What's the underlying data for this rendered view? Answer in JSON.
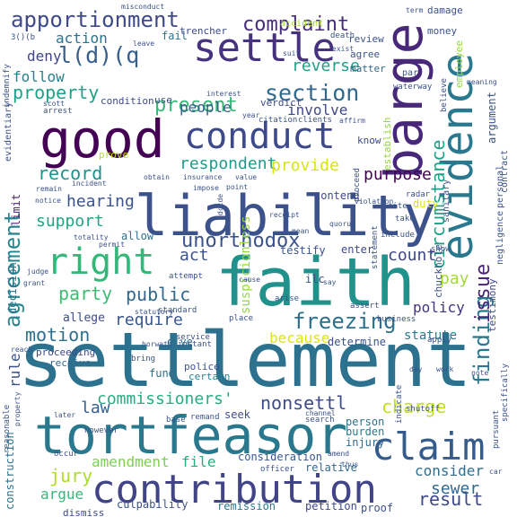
{
  "cloud": {
    "words": [
      {
        "text": "settlement",
        "color": "#2c728e"
      },
      {
        "text": "faith",
        "color": "#21918c"
      },
      {
        "text": "liability",
        "color": "#3b528b"
      },
      {
        "text": "tortfeasor",
        "color": "#2a788e"
      },
      {
        "text": "good",
        "color": "#440154"
      },
      {
        "text": "contribution",
        "color": "#414487"
      },
      {
        "text": "settle",
        "color": "#46327e"
      },
      {
        "text": "barge",
        "color": "#482878"
      },
      {
        "text": "evidence",
        "color": "#2a788e"
      },
      {
        "text": "conduct",
        "color": "#3e4989"
      },
      {
        "text": "claim",
        "color": "#365c8d"
      },
      {
        "text": "right",
        "color": "#35b779"
      },
      {
        "text": "apportionment",
        "color": "#3e4a89"
      },
      {
        "text": "l(d)(q",
        "color": "#355f8d"
      },
      {
        "text": "section",
        "color": "#31688e"
      },
      {
        "text": "unorthodox",
        "color": "#3b528b"
      },
      {
        "text": "freezing",
        "color": "#2d708e"
      },
      {
        "text": "agreement",
        "color": "#25848e"
      },
      {
        "text": "finding",
        "color": "#2a788e"
      },
      {
        "text": "circumstance",
        "color": "#1fa187"
      },
      {
        "text": "complaint",
        "color": "#472d7b"
      },
      {
        "text": "property",
        "color": "#1fa188"
      },
      {
        "text": "present",
        "color": "#37b878"
      },
      {
        "text": "respondent",
        "color": "#1e9b8a"
      },
      {
        "text": "nonsettl",
        "color": "#3e4a89"
      },
      {
        "text": "public",
        "color": "#31688e"
      },
      {
        "text": "charge",
        "color": "#c0df25"
      },
      {
        "text": "party",
        "color": "#3fbc73"
      },
      {
        "text": "motion",
        "color": "#2d708e"
      },
      {
        "text": "record",
        "color": "#21918c"
      },
      {
        "text": "commissioners'",
        "color": "#27ad81"
      },
      {
        "text": "issue",
        "color": "#482475"
      },
      {
        "text": "require",
        "color": "#39568c"
      },
      {
        "text": "jury",
        "color": "#addc30"
      },
      {
        "text": "provide",
        "color": "#d8e219"
      },
      {
        "text": "support",
        "color": "#20a486"
      },
      {
        "text": "hearing",
        "color": "#3b528b"
      },
      {
        "text": "act",
        "color": "#3b528b"
      },
      {
        "text": "law",
        "color": "#355f8d"
      },
      {
        "text": "result",
        "color": "#3e4989"
      },
      {
        "text": "sewer",
        "color": "#31688e"
      },
      {
        "text": "count",
        "color": "#3f4788"
      },
      {
        "text": "policy",
        "color": "#46337f"
      },
      {
        "text": "pay",
        "color": "#a2da37"
      },
      {
        "text": "because",
        "color": "#dde318"
      },
      {
        "text": "involve",
        "color": "#3f4889"
      },
      {
        "text": "people",
        "color": "#355e8d"
      },
      {
        "text": "purpose",
        "color": "#440154"
      },
      {
        "text": "reverse",
        "color": "#1fa088"
      },
      {
        "text": "action",
        "color": "#2c728e"
      },
      {
        "text": "follow",
        "color": "#26828e"
      },
      {
        "text": "deny",
        "color": "#404688"
      },
      {
        "text": "amendment",
        "color": "#7ad151"
      },
      {
        "text": "argue",
        "color": "#35b779"
      },
      {
        "text": "consider",
        "color": "#2e6f8e"
      },
      {
        "text": "file",
        "color": "#28ae80"
      },
      {
        "text": "rule",
        "color": "#3b528b"
      },
      {
        "text": "allege",
        "color": "#3e4a89"
      },
      {
        "text": "statute",
        "color": "#2a788e"
      },
      {
        "text": "determine",
        "color": "#3b528b"
      },
      {
        "text": "construction",
        "color": "#2c728e"
      },
      {
        "text": "culpability",
        "color": "#3b528b"
      },
      {
        "text": "remission",
        "color": "#2a788e"
      },
      {
        "text": "petition",
        "color": "#3e4a89"
      },
      {
        "text": "proof",
        "color": "#3b528b"
      },
      {
        "text": "dismiss",
        "color": "#3e4989"
      },
      {
        "text": "consideration",
        "color": "#39568c"
      },
      {
        "text": "relative",
        "color": "#31688e"
      },
      {
        "text": "seek",
        "color": "#3e4989"
      },
      {
        "text": "give",
        "color": "#2e6e8e"
      },
      {
        "text": "suspicionless",
        "color": "#95d840"
      },
      {
        "text": "fund",
        "color": "#2c728e"
      },
      {
        "text": "certain",
        "color": "#26828e"
      },
      {
        "text": "police",
        "color": "#3b528b"
      },
      {
        "text": "injury",
        "color": "#31688e"
      },
      {
        "text": "burden",
        "color": "#2a788e"
      },
      {
        "text": "person",
        "color": "#2c728e"
      },
      {
        "text": "duty",
        "color": "#dde318"
      },
      {
        "text": "ilc",
        "color": "#3b528b"
      },
      {
        "text": "testify",
        "color": "#3b528b"
      },
      {
        "text": "enter",
        "color": "#3e4a89"
      },
      {
        "text": "contend",
        "color": "#3e4a89"
      },
      {
        "text": "know",
        "color": "#3e4989"
      },
      {
        "text": "allow",
        "color": "#2c728e"
      },
      {
        "text": "decision",
        "color": "#2c728e"
      },
      {
        "text": "limit",
        "color": "#481f70"
      },
      {
        "text": "prove",
        "color": "#b5de2b"
      },
      {
        "text": "proceeding",
        "color": "#3e4a89"
      },
      {
        "text": "receive",
        "color": "#31688e"
      },
      {
        "text": "condition",
        "color": "#3e4a89"
      },
      {
        "text": "verdict",
        "color": "#3e4989"
      },
      {
        "text": "use",
        "color": "#3e4a89"
      },
      {
        "text": "matter",
        "color": "#31688e"
      },
      {
        "text": "agree",
        "color": "#3b528b"
      },
      {
        "text": "review",
        "color": "#3b528b"
      },
      {
        "text": "money",
        "color": "#3b528b"
      },
      {
        "text": "damage",
        "color": "#3b528b"
      },
      {
        "text": "employee",
        "color": "#95d840"
      },
      {
        "text": "argument",
        "color": "#3b528b"
      },
      {
        "text": "personal",
        "color": "#3b528b"
      },
      {
        "text": "negligence",
        "color": "#3b528b"
      },
      {
        "text": "establish",
        "color": "#95d840"
      },
      {
        "text": "testimony",
        "color": "#3e4a89"
      },
      {
        "text": "chuckhole",
        "color": "#3b528b"
      },
      {
        "text": "sanitary",
        "color": "#3b528b"
      },
      {
        "text": "fail",
        "color": "#2c728e"
      },
      {
        "text": "trencher",
        "color": "#3e4a89"
      },
      {
        "text": "accident",
        "color": "#a2da37"
      },
      {
        "text": "death",
        "color": "#3b528b"
      },
      {
        "text": "exist",
        "color": "#3b528b"
      },
      {
        "text": "par",
        "color": "#3b528b"
      },
      {
        "text": "waterway",
        "color": "#3b528b"
      },
      {
        "text": "interest",
        "color": "#3b528b"
      },
      {
        "text": "arrest",
        "color": "#3b528b"
      },
      {
        "text": "citation",
        "color": "#3b528b"
      },
      {
        "text": "clients",
        "color": "#3b528b"
      },
      {
        "text": "affirm",
        "color": "#3b528b"
      },
      {
        "text": "year",
        "color": "#3b528b"
      },
      {
        "text": "cite",
        "color": "#3b528b"
      },
      {
        "text": "include",
        "color": "#3b528b"
      },
      {
        "text": "take",
        "color": "#3b528b"
      },
      {
        "text": "show",
        "color": "#3b528b"
      },
      {
        "text": "business",
        "color": "#3b528b"
      },
      {
        "text": "assert",
        "color": "#3b528b"
      },
      {
        "text": "arise",
        "color": "#3b528b"
      },
      {
        "text": "apply",
        "color": "#3b528b"
      },
      {
        "text": "attempt",
        "color": "#3b528b"
      },
      {
        "text": "standard",
        "color": "#3b528b"
      },
      {
        "text": "service",
        "color": "#3b528b"
      },
      {
        "text": "instant",
        "color": "#3b528b"
      },
      {
        "text": "place",
        "color": "#3b528b"
      },
      {
        "text": "bring",
        "color": "#3b528b"
      },
      {
        "text": "however",
        "color": "#3b528b"
      },
      {
        "text": "base",
        "color": "#3b528b"
      },
      {
        "text": "remand",
        "color": "#3b528b"
      },
      {
        "text": "shutoff",
        "color": "#3b528b"
      },
      {
        "text": "search",
        "color": "#3b528b"
      },
      {
        "text": "occur",
        "color": "#3b528b"
      },
      {
        "text": "officer",
        "color": "#3b528b"
      },
      {
        "text": "reasonable",
        "color": "#3b528b"
      },
      {
        "text": "obtain",
        "color": "#3b528b"
      },
      {
        "text": "insurance",
        "color": "#3b528b"
      },
      {
        "text": "value",
        "color": "#3b528b"
      },
      {
        "text": "impose",
        "color": "#3b528b"
      },
      {
        "text": "point",
        "color": "#3b528b"
      },
      {
        "text": "remain",
        "color": "#3b528b"
      },
      {
        "text": "incident",
        "color": "#3b528b"
      },
      {
        "text": "notice",
        "color": "#3b528b"
      },
      {
        "text": "contract",
        "color": "#3b528b"
      },
      {
        "text": "scott",
        "color": "#3b528b"
      },
      {
        "text": "evidentiary",
        "color": "#3b528b"
      },
      {
        "text": "indemnify",
        "color": "#3b528b"
      },
      {
        "text": "misconduct",
        "color": "#3b528b"
      },
      {
        "text": "term",
        "color": "#3b528b"
      },
      {
        "text": "leave",
        "color": "#3b528b"
      },
      {
        "text": "suit",
        "color": "#3b528b"
      },
      {
        "text": "grant",
        "color": "#3b528b"
      },
      {
        "text": "meaning",
        "color": "#3b528b"
      },
      {
        "text": "believe",
        "color": "#3b528b"
      },
      {
        "text": "statement",
        "color": "#3b528b"
      },
      {
        "text": "proceed",
        "color": "#3b528b"
      },
      {
        "text": "violation",
        "color": "#3b528b"
      },
      {
        "text": "radar",
        "color": "#3b528b"
      },
      {
        "text": "specifically",
        "color": "#3b528b"
      },
      {
        "text": "pursuant",
        "color": "#3b528b"
      },
      {
        "text": "indicate",
        "color": "#3b528b"
      },
      {
        "text": "reach",
        "color": "#3b528b"
      },
      {
        "text": "property",
        "color": "#3b528b"
      },
      {
        "text": "channel",
        "color": "#3b528b"
      },
      {
        "text": "amend",
        "color": "#3b528b"
      },
      {
        "text": "thus",
        "color": "#3b528b"
      },
      {
        "text": "car",
        "color": "#3b528b"
      },
      {
        "text": "work",
        "color": "#3b528b"
      },
      {
        "text": "day",
        "color": "#3b528b"
      },
      {
        "text": "note",
        "color": "#3b528b"
      },
      {
        "text": "horwath",
        "color": "#3b528b"
      },
      {
        "text": "statutory",
        "color": "#3b528b"
      },
      {
        "text": "totality",
        "color": "#3b528b"
      },
      {
        "text": "permit",
        "color": "#3b528b"
      },
      {
        "text": "cause",
        "color": "#3b528b"
      },
      {
        "text": "judge",
        "color": "#3b528b"
      },
      {
        "text": "dccde",
        "color": "#3b528b"
      },
      {
        "text": "quorum",
        "color": "#3b528b"
      },
      {
        "text": "receipt",
        "color": "#3b528b"
      },
      {
        "text": "mean",
        "color": "#3b528b"
      },
      {
        "text": "say",
        "color": "#3b528b"
      },
      {
        "text": "later",
        "color": "#3b528b"
      },
      {
        "text": "3()(b",
        "color": "#3b528b"
      }
    ]
  }
}
